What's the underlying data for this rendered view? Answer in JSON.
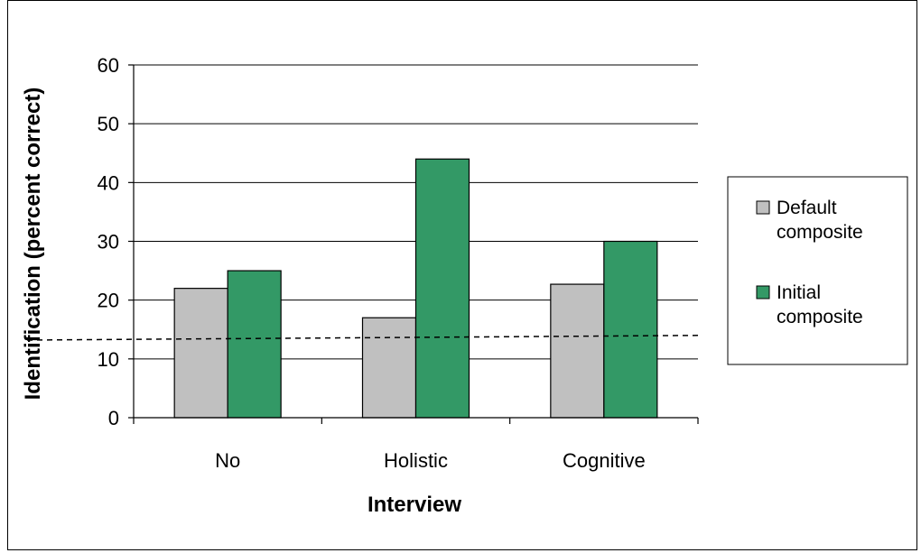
{
  "chart_data": {
    "type": "bar",
    "categories": [
      "No",
      "Holistic",
      "Cognitive"
    ],
    "series": [
      {
        "name": "Default composite",
        "values": [
          22,
          17,
          22.7
        ],
        "color": "#c0c0c0"
      },
      {
        "name": "Initial composite",
        "values": [
          25,
          44,
          30
        ],
        "color": "#339966"
      }
    ],
    "reference_line": {
      "start": 13.2,
      "end": 14,
      "style": "dashed"
    },
    "title": "",
    "xlabel": "Interview",
    "ylabel": "Identification (percent correct)",
    "ylim": [
      0,
      60
    ],
    "yticks": [
      0,
      10,
      20,
      30,
      40,
      50,
      60
    ],
    "grid": true,
    "legend_placement": "right",
    "legend_lines": [
      [
        "Default",
        "composite"
      ],
      [
        "Initial",
        "composite"
      ]
    ]
  }
}
